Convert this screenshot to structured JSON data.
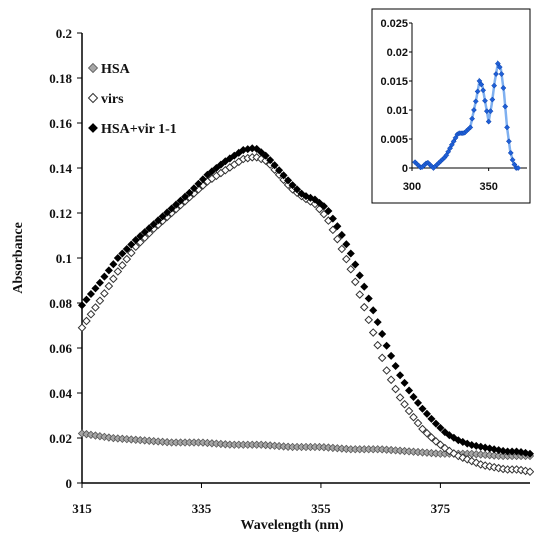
{
  "chart_data": [
    {
      "type": "scatter",
      "title": "",
      "xlabel": "Wavelength (nm)",
      "ylabel": "Absorbance",
      "xlim": [
        315,
        390
      ],
      "ylim": [
        0,
        0.2
      ],
      "x_ticks": [
        "315",
        "335",
        "355",
        "375"
      ],
      "y_ticks": [
        "0",
        "0.02",
        "0.04",
        "0.06",
        "0.08",
        "0.1",
        "0.12",
        "0.14",
        "0.16",
        "0.18",
        "0.2"
      ],
      "legend_position": "top-left",
      "grid": false,
      "series": [
        {
          "name": "HSA",
          "marker": "diamond",
          "color": "#9a9a9a",
          "x": [
            315,
            320,
            325,
            330,
            335,
            340,
            345,
            350,
            355,
            360,
            365,
            370,
            375,
            380,
            385,
            390
          ],
          "y": [
            0.022,
            0.02,
            0.019,
            0.018,
            0.018,
            0.017,
            0.017,
            0.016,
            0.016,
            0.015,
            0.015,
            0.014,
            0.013,
            0.013,
            0.012,
            0.012
          ]
        },
        {
          "name": "virs",
          "marker": "diamond-open",
          "color": "#333333",
          "x": [
            315,
            318,
            321,
            324,
            327,
            330,
            333,
            336,
            339,
            342,
            344,
            346,
            348,
            350,
            352,
            354,
            356,
            358,
            360,
            362,
            364,
            366,
            368,
            370,
            372,
            374,
            376,
            378,
            380,
            382,
            384,
            386,
            388,
            390
          ],
          "y": [
            0.069,
            0.081,
            0.094,
            0.105,
            0.113,
            0.12,
            0.127,
            0.134,
            0.139,
            0.144,
            0.145,
            0.143,
            0.137,
            0.131,
            0.127,
            0.124,
            0.118,
            0.107,
            0.095,
            0.08,
            0.065,
            0.05,
            0.039,
            0.031,
            0.024,
            0.019,
            0.015,
            0.012,
            0.01,
            0.008,
            0.007,
            0.006,
            0.006,
            0.005
          ]
        },
        {
          "name": "HSA+vir 1-1",
          "marker": "diamond-filled",
          "color": "#000000",
          "x": [
            315,
            318,
            321,
            324,
            327,
            330,
            333,
            336,
            339,
            342,
            344,
            346,
            348,
            350,
            352,
            354,
            356,
            358,
            360,
            362,
            364,
            366,
            368,
            370,
            372,
            374,
            376,
            378,
            380,
            382,
            384,
            386,
            388,
            390
          ],
          "y": [
            0.079,
            0.089,
            0.1,
            0.108,
            0.115,
            0.122,
            0.129,
            0.137,
            0.143,
            0.148,
            0.149,
            0.145,
            0.139,
            0.133,
            0.128,
            0.126,
            0.122,
            0.113,
            0.102,
            0.089,
            0.075,
            0.061,
            0.049,
            0.04,
            0.033,
            0.027,
            0.022,
            0.019,
            0.017,
            0.016,
            0.015,
            0.014,
            0.014,
            0.013
          ]
        }
      ]
    },
    {
      "type": "line",
      "title": "",
      "xlabel": "",
      "ylabel": "",
      "xlim": [
        300,
        375
      ],
      "ylim": [
        0,
        0.025
      ],
      "x_ticks": [
        "300",
        "350"
      ],
      "y_ticks": [
        "0",
        "0.005",
        "0.01",
        "0.015",
        "0.02",
        "0.025"
      ],
      "grid": false,
      "series": [
        {
          "color": "#1f5fd6",
          "x": [
            302,
            306,
            310,
            314,
            318,
            322,
            326,
            330,
            334,
            338,
            342,
            344,
            346,
            348,
            350,
            352,
            354,
            356,
            358,
            360,
            362,
            364,
            366,
            368,
            370
          ],
          "y": [
            0.001,
            0.0,
            0.001,
            0.0,
            0.001,
            0.002,
            0.004,
            0.006,
            0.006,
            0.007,
            0.012,
            0.015,
            0.014,
            0.011,
            0.008,
            0.011,
            0.015,
            0.018,
            0.017,
            0.013,
            0.007,
            0.003,
            0.001,
            0.0,
            0.0
          ]
        }
      ]
    }
  ]
}
